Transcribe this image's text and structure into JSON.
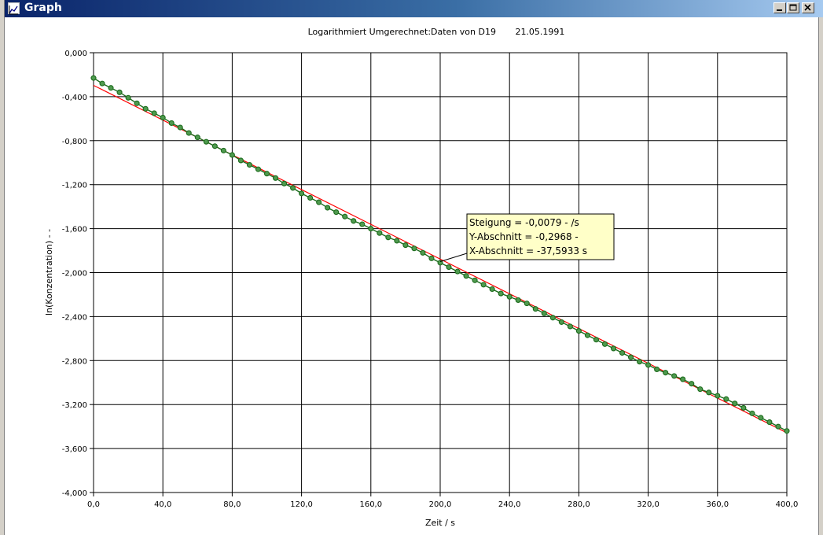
{
  "window": {
    "title": "Graph",
    "icon": "graph-icon",
    "controls": [
      "minimize-icon",
      "maximize-icon",
      "close-icon"
    ]
  },
  "chart_data": {
    "type": "scatter",
    "title": "Logarithmiert Umgerechnet:Daten von D19       21.05.1991",
    "xlabel": "Zeit / s",
    "ylabel": "ln(Konzentration) - -",
    "xlim": [
      0,
      400
    ],
    "ylim": [
      -4,
      0
    ],
    "x_ticks": [
      "0,0",
      "40,0",
      "80,0",
      "120,0",
      "160,0",
      "200,0",
      "240,0",
      "280,0",
      "320,0",
      "360,0",
      "400,0"
    ],
    "y_ticks": [
      "0,000",
      "-0,400",
      "-0,800",
      "-1,200",
      "-1,600",
      "-2,000",
      "-2,400",
      "-2,800",
      "-3,200",
      "-3,600",
      "-4,000"
    ],
    "grid": true,
    "colors": {
      "points": "#1c6b1c",
      "point_fill": "#4f9a4f",
      "fit_line": "#ff0000",
      "tooltip": "#ffffc8"
    },
    "series": [
      {
        "x": [
          0,
          5,
          10,
          15,
          20,
          25,
          30,
          35,
          40,
          45,
          50,
          55,
          60,
          65,
          70,
          75,
          80,
          85,
          90,
          95,
          100,
          105,
          110,
          115,
          120,
          125,
          130,
          135,
          140,
          145,
          150,
          155,
          160,
          165,
          170,
          175,
          180,
          185,
          190,
          195,
          200,
          205,
          210,
          215,
          220,
          225,
          230,
          235,
          240,
          245,
          250,
          255,
          260,
          265,
          270,
          275,
          280,
          285,
          290,
          295,
          300,
          305,
          310,
          315,
          320,
          325,
          330,
          335,
          340,
          345,
          350,
          355,
          360,
          365,
          370,
          375,
          380,
          385,
          390,
          395,
          400
        ],
        "y": [
          -0.23,
          -0.28,
          -0.32,
          -0.36,
          -0.41,
          -0.46,
          -0.51,
          -0.55,
          -0.59,
          -0.64,
          -0.68,
          -0.73,
          -0.77,
          -0.81,
          -0.85,
          -0.89,
          -0.93,
          -0.98,
          -1.02,
          -1.06,
          -1.1,
          -1.14,
          -1.19,
          -1.23,
          -1.28,
          -1.32,
          -1.36,
          -1.41,
          -1.45,
          -1.49,
          -1.53,
          -1.56,
          -1.6,
          -1.64,
          -1.68,
          -1.71,
          -1.75,
          -1.78,
          -1.82,
          -1.87,
          -1.91,
          -1.95,
          -1.99,
          -2.03,
          -2.07,
          -2.11,
          -2.15,
          -2.19,
          -2.22,
          -2.25,
          -2.28,
          -2.33,
          -2.37,
          -2.41,
          -2.45,
          -2.49,
          -2.53,
          -2.57,
          -2.61,
          -2.65,
          -2.69,
          -2.73,
          -2.77,
          -2.81,
          -2.84,
          -2.88,
          -2.91,
          -2.94,
          -2.97,
          -3.01,
          -3.06,
          -3.09,
          -3.12,
          -3.15,
          -3.19,
          -3.23,
          -3.28,
          -3.32,
          -3.36,
          -3.4,
          -3.44
        ]
      }
    ],
    "fit": {
      "slope": -0.0079,
      "intercept": -0.2968
    },
    "annotation": {
      "lines": [
        "Steigung =  -0,0079    - /s",
        "Y-Abschnitt =  -0,2968    -",
        "X-Abschnitt =  -37,5933  s"
      ],
      "anchor": [
        200,
        -1.9
      ]
    }
  }
}
